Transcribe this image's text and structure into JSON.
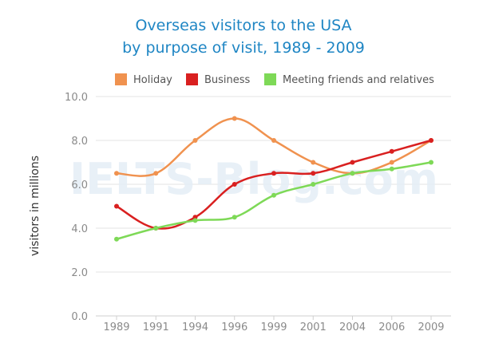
{
  "watermark": "IELTS-Blog.com",
  "chart_data": {
    "type": "line",
    "title_lines": [
      "Overseas visitors to the USA",
      "by purpose of visit, 1989 - 2009"
    ],
    "xlabel": "",
    "ylabel": "visitors in millions",
    "categories": [
      "1989",
      "1991",
      "1994",
      "1996",
      "1999",
      "2001",
      "2004",
      "2006",
      "2009"
    ],
    "ylim": [
      0,
      10
    ],
    "yticks": [
      "0.0",
      "2.0",
      "4.0",
      "6.0",
      "8.0",
      "10.0"
    ],
    "grid": true,
    "legend_position": "top",
    "series": [
      {
        "name": "Holiday",
        "color": "#f0924f",
        "values": [
          6.5,
          6.5,
          8.0,
          9.0,
          8.0,
          7.0,
          6.5,
          7.0,
          8.0
        ]
      },
      {
        "name": "Business",
        "color": "#d92020",
        "values": [
          5.0,
          4.0,
          4.5,
          6.0,
          6.5,
          6.5,
          7.0,
          7.5,
          8.0
        ]
      },
      {
        "name": "Meeting friends and relatives",
        "color": "#7ed957",
        "values": [
          3.5,
          4.0,
          4.35,
          4.5,
          5.5,
          6.0,
          6.5,
          6.7,
          7.0
        ]
      }
    ]
  }
}
